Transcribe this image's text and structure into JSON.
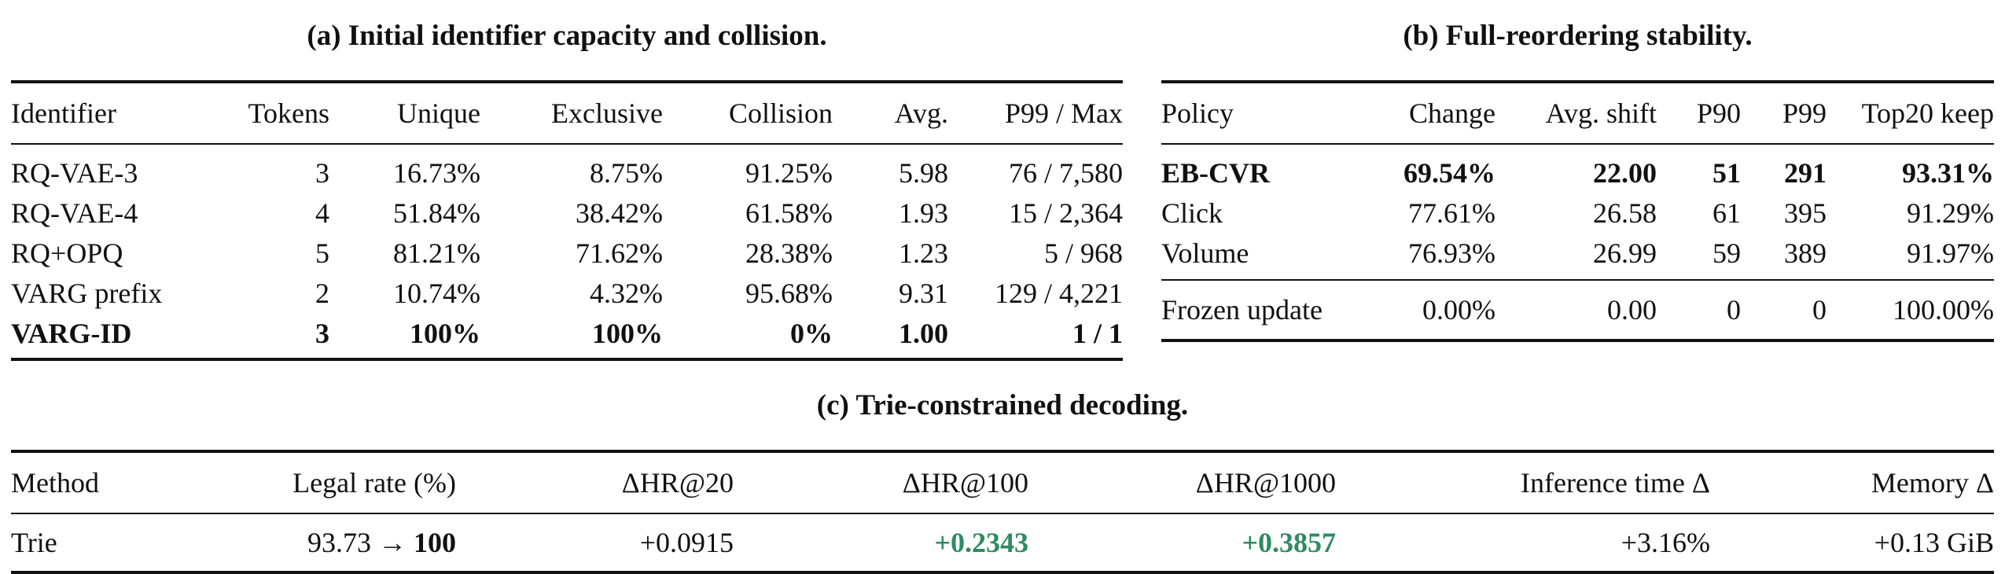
{
  "panel_a": {
    "caption": "(a) Initial identifier capacity and collision.",
    "headers": [
      "Identifier",
      "Tokens",
      "Unique",
      "Exclusive",
      "Collision",
      "Avg.",
      "P99 / Max"
    ],
    "rows": [
      [
        "RQ-VAE-3",
        "3",
        "16.73%",
        "8.75%",
        "91.25%",
        "5.98",
        "76 / 7,580"
      ],
      [
        "RQ-VAE-4",
        "4",
        "51.84%",
        "38.42%",
        "61.58%",
        "1.93",
        "15 / 2,364"
      ],
      [
        "RQ+OPQ",
        "5",
        "81.21%",
        "71.62%",
        "28.38%",
        "1.23",
        "5 / 968"
      ],
      [
        "VARG prefix",
        "2",
        "10.74%",
        "4.32%",
        "95.68%",
        "9.31",
        "129 / 4,221"
      ],
      [
        "VARG-ID",
        "3",
        "100%",
        "100%",
        "0%",
        "1.00",
        "1 / 1"
      ]
    ]
  },
  "panel_b": {
    "caption": "(b) Full-reordering stability.",
    "headers": [
      "Policy",
      "Change",
      "Avg. shift",
      "P90",
      "P99",
      "Top20 keep"
    ],
    "rows": [
      [
        "EB-CVR",
        "69.54%",
        "22.00",
        "51",
        "291",
        "93.31%"
      ],
      [
        "Click",
        "77.61%",
        "26.58",
        "61",
        "395",
        "91.29%"
      ],
      [
        "Volume",
        "76.93%",
        "26.99",
        "59",
        "389",
        "91.97%"
      ],
      [
        "Frozen update",
        "0.00%",
        "0.00",
        "0",
        "0",
        "100.00%"
      ]
    ]
  },
  "panel_c": {
    "caption": "(c) Trie-constrained decoding.",
    "headers": [
      "Method",
      "Legal rate (%)",
      "ΔHR@20",
      "ΔHR@100",
      "ΔHR@1000",
      "Inference time Δ",
      "Memory Δ"
    ],
    "row": {
      "method": "Trie",
      "legal_from": "93.73",
      "arrow": "→",
      "legal_to": "100",
      "dhr20": "+0.0915",
      "dhr100": "+0.2343",
      "dhr1000": "+0.3857",
      "inference": "+3.16%",
      "memory": "+0.13 GiB"
    }
  },
  "colors": {
    "highlight_green": "#2e8b62",
    "rule": "#111111"
  }
}
